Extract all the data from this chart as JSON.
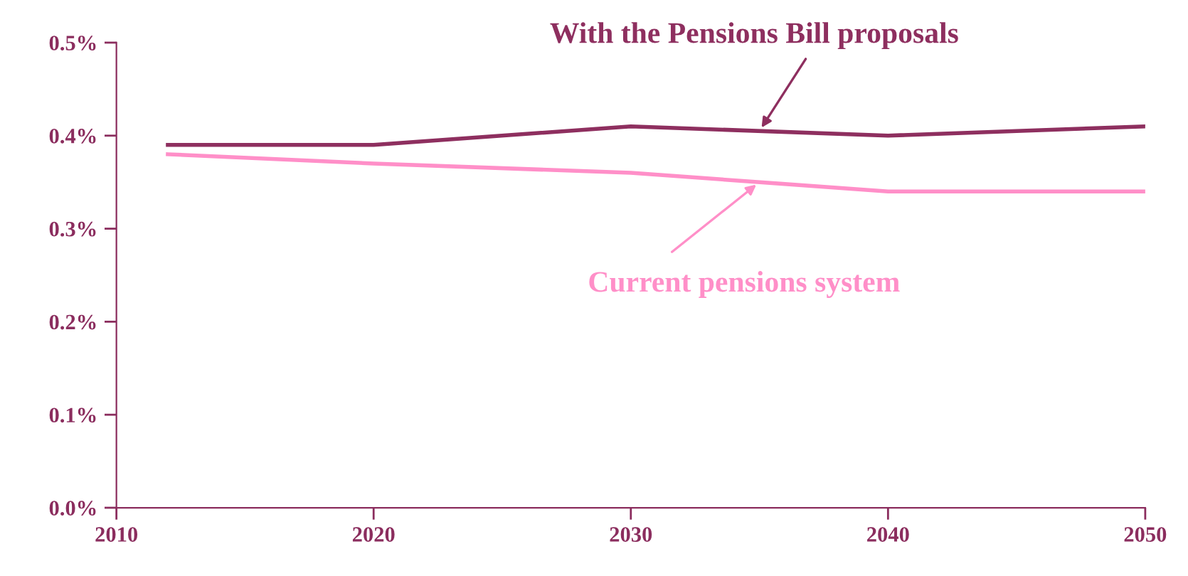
{
  "chart_data": {
    "type": "line",
    "x": [
      2012,
      2020,
      2030,
      2040,
      2050
    ],
    "series": [
      {
        "name": "With the Pensions Bill proposals",
        "color": "#8e2f5f",
        "values": [
          0.39,
          0.39,
          0.41,
          0.4,
          0.41
        ]
      },
      {
        "name": "Current pensions system",
        "color": "#ff8fc8",
        "values": [
          0.38,
          0.37,
          0.36,
          0.34,
          0.34
        ]
      }
    ],
    "xlim": [
      2010,
      2050
    ],
    "xticks": [
      2010,
      2020,
      2030,
      2040,
      2050
    ],
    "ylim": [
      0,
      0.5
    ],
    "yticks": [
      {
        "value": 0,
        "label": "0.0%"
      },
      {
        "value": 0.1,
        "label": "0.1%"
      },
      {
        "value": 0.2,
        "label": "0.2%"
      },
      {
        "value": 0.3,
        "label": "0.3%"
      },
      {
        "value": 0.4,
        "label": "0.4%"
      },
      {
        "value": 0.5,
        "label": "0.5%"
      }
    ],
    "grid": false,
    "marker": "none",
    "line_style": "solid"
  }
}
